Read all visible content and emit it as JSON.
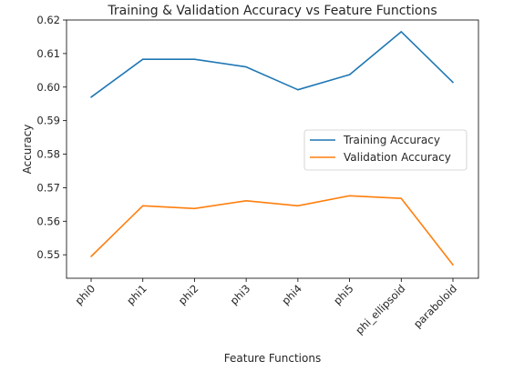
{
  "chart_data": {
    "type": "line",
    "title": "Training & Validation Accuracy vs Feature Functions",
    "xlabel": "Feature Functions",
    "ylabel": "Accuracy",
    "categories": [
      "phi0",
      "phi1",
      "phi2",
      "phi3",
      "phi4",
      "phi5",
      "phi_ellipsoid",
      "paraboloid"
    ],
    "ylim": [
      0.543,
      0.62
    ],
    "yticks": [
      "0.55",
      "0.56",
      "0.57",
      "0.58",
      "0.59",
      "0.60",
      "0.61",
      "0.62"
    ],
    "grid": false,
    "legend_position": "center-right",
    "series": [
      {
        "name": "Training Accuracy",
        "color": "#1f77b4",
        "values": [
          0.597,
          0.6083,
          0.6083,
          0.606,
          0.5992,
          0.6037,
          0.6165,
          0.6014
        ]
      },
      {
        "name": "Validation Accuracy",
        "color": "#ff7f0e",
        "values": [
          0.5495,
          0.5646,
          0.5638,
          0.5661,
          0.5646,
          0.5676,
          0.5668,
          0.547
        ]
      }
    ]
  }
}
